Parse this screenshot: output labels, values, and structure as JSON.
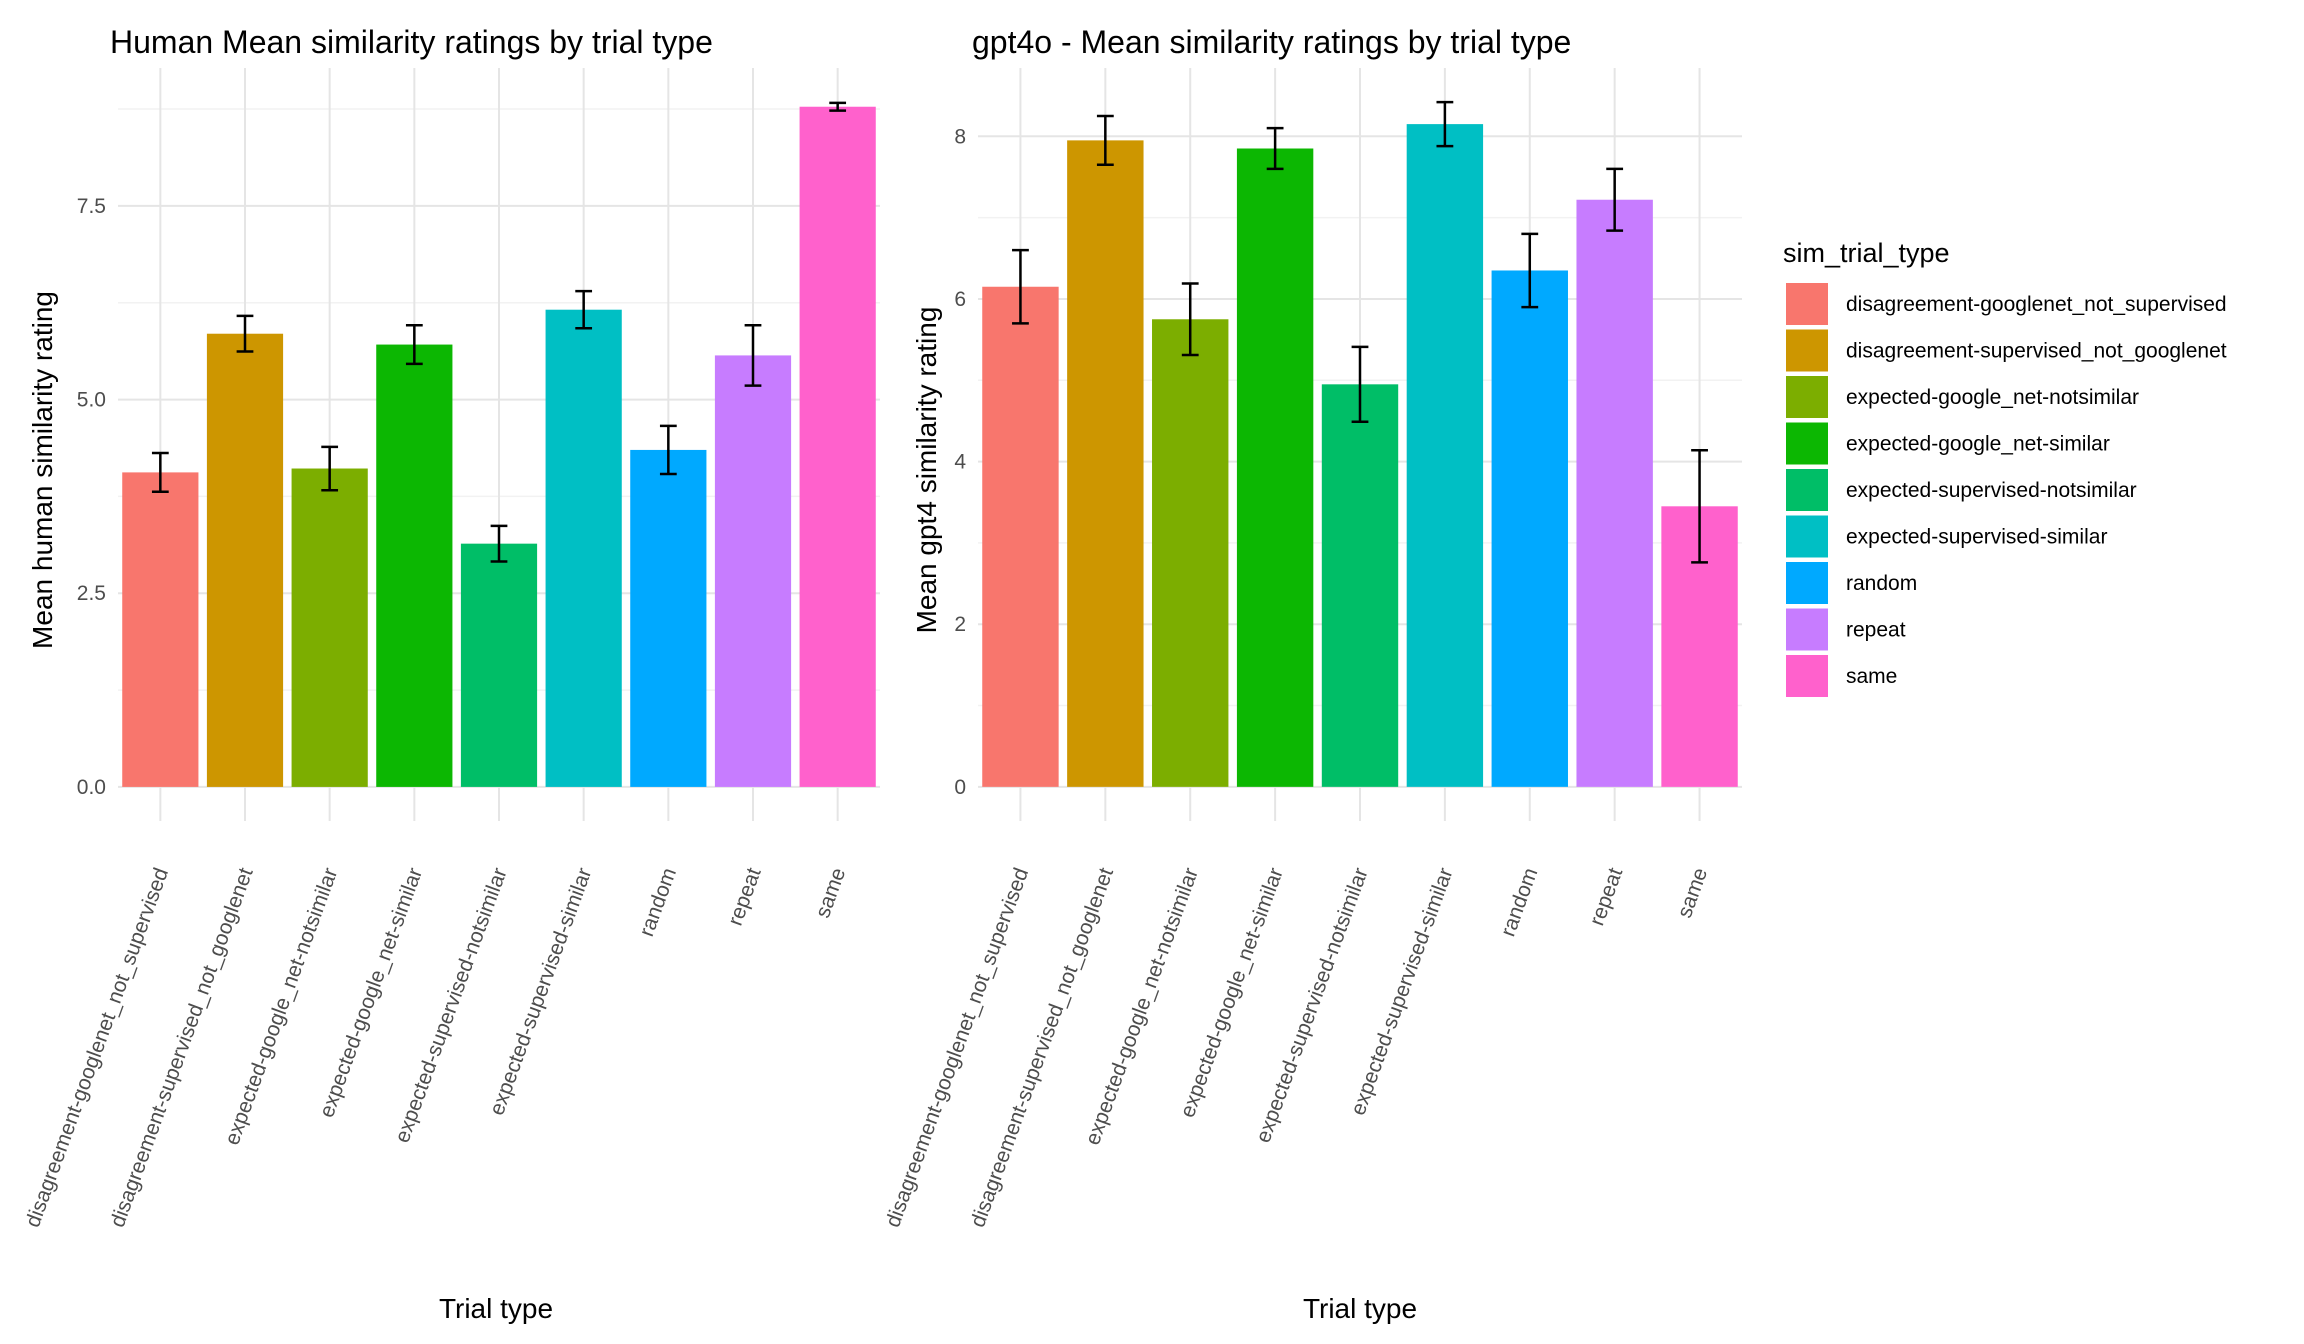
{
  "legend": {
    "title": "sim_trial_type"
  },
  "colors": {
    "disagreement-googlenet_not_supervised": "#F8766D",
    "disagreement-supervised_not_googlenet": "#CD9600",
    "expected-google_net-notsimilar": "#7CAE00",
    "expected-google_net-similar": "#0CB702",
    "expected-supervised-notsimilar": "#00BE67",
    "expected-supervised-similar": "#00BFC4",
    "random": "#00A9FF",
    "repeat": "#C77CFF",
    "same": "#FF61CC"
  },
  "chart_data": [
    {
      "type": "bar",
      "title": "Human Mean similarity ratings by trial type",
      "xlabel": "Trial type",
      "ylabel": "Mean human similarity rating",
      "categories": [
        "disagreement-googlenet_not_supervised",
        "disagreement-supervised_not_googlenet",
        "expected-google_net-notsimilar",
        "expected-google_net-similar",
        "expected-supervised-notsimilar",
        "expected-supervised-similar",
        "random",
        "repeat",
        "same"
      ],
      "values": [
        4.06,
        5.85,
        4.11,
        5.71,
        3.14,
        6.16,
        4.35,
        5.57,
        8.78
      ],
      "error": [
        0.25,
        0.23,
        0.28,
        0.25,
        0.23,
        0.24,
        0.31,
        0.39,
        0.05
      ],
      "yticks": [
        0.0,
        2.5,
        5.0,
        7.5
      ],
      "ytick_labels": [
        "0.0",
        "2.5",
        "5.0",
        "7.5"
      ],
      "ylim": [
        -0.44,
        9.28
      ],
      "grid": true
    },
    {
      "type": "bar",
      "title": "gpt4o - Mean similarity ratings by trial type",
      "xlabel": "Trial type",
      "ylabel": "Mean gpt4 similarity rating",
      "categories": [
        "disagreement-googlenet_not_supervised",
        "disagreement-supervised_not_googlenet",
        "expected-google_net-notsimilar",
        "expected-google_net-similar",
        "expected-supervised-notsimilar",
        "expected-supervised-similar",
        "random",
        "repeat",
        "same"
      ],
      "values": [
        6.15,
        7.95,
        5.75,
        7.85,
        4.95,
        8.15,
        6.35,
        7.22,
        3.45
      ],
      "error": [
        0.45,
        0.3,
        0.44,
        0.25,
        0.46,
        0.27,
        0.45,
        0.38,
        0.69
      ],
      "yticks": [
        0,
        2,
        4,
        6,
        8
      ],
      "ytick_labels": [
        "0",
        "2",
        "4",
        "6",
        "8"
      ],
      "ylim": [
        -0.42,
        8.84
      ],
      "grid": true
    }
  ]
}
